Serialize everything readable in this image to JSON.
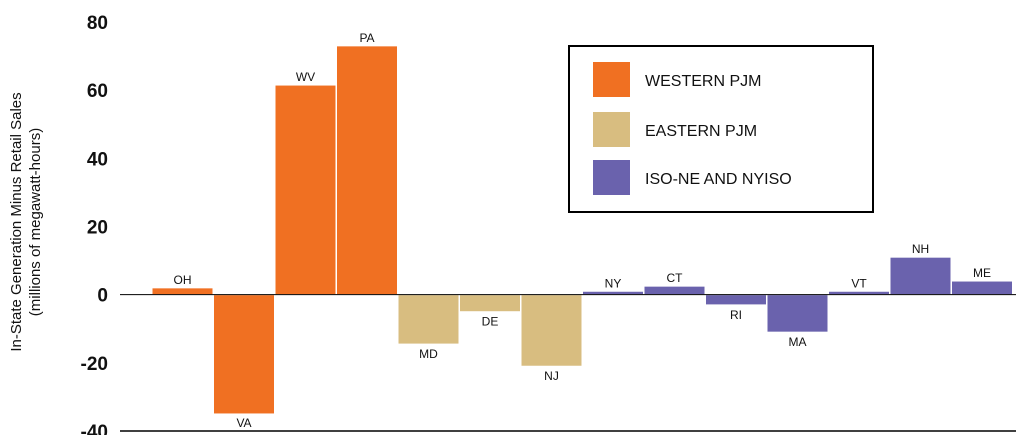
{
  "chart_data": {
    "type": "bar",
    "ylabel": "In-State Generation Minus Retail Sales",
    "ylabel_sub": "(millions of megawatt-hours)",
    "ylim": [
      -40,
      80
    ],
    "yticks": [
      80,
      60,
      40,
      20,
      0,
      -20,
      -40
    ],
    "categories": [
      "OH",
      "VA",
      "WV",
      "PA",
      "MD",
      "DE",
      "NJ",
      "NY",
      "CT",
      "RI",
      "MA",
      "VT",
      "NH",
      "ME"
    ],
    "values": [
      2,
      -35,
      61.5,
      73,
      -14.5,
      -5,
      -21,
      1,
      2.5,
      -3,
      -11,
      1,
      11,
      4
    ],
    "groups": [
      "western",
      "western",
      "western",
      "western",
      "eastern",
      "eastern",
      "eastern",
      "isone",
      "isone",
      "isone",
      "isone",
      "isone",
      "isone",
      "isone"
    ],
    "series": [
      {
        "key": "western",
        "name": "WESTERN PJM",
        "color": "#f07022"
      },
      {
        "key": "eastern",
        "name": "EASTERN PJM",
        "color": "#d8bd80"
      },
      {
        "key": "isone",
        "name": "ISO-NE AND NYISO",
        "color": "#6a62ad"
      }
    ],
    "legend_position": "top-right",
    "grid": false
  }
}
